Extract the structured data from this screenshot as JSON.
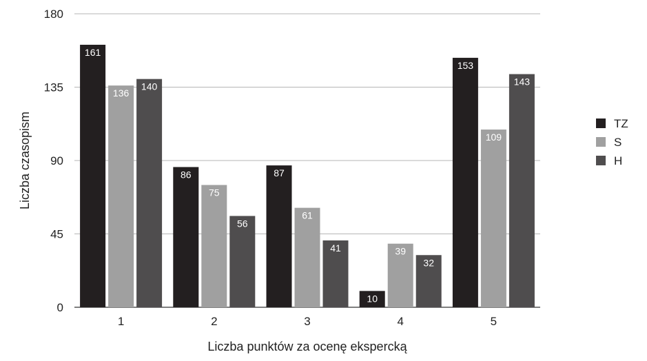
{
  "chart_data": {
    "type": "bar",
    "categories": [
      "1",
      "2",
      "3",
      "4",
      "5"
    ],
    "series": [
      {
        "name": "TZ",
        "values": [
          161,
          86,
          87,
          10,
          153
        ],
        "color": "#231f20"
      },
      {
        "name": "S",
        "values": [
          136,
          75,
          61,
          39,
          109
        ],
        "color": "#a0a0a0"
      },
      {
        "name": "H",
        "values": [
          140,
          56,
          41,
          32,
          143
        ],
        "color": "#4f4d4e"
      }
    ],
    "xlabel": "Liczba punktów za ocenę ekspercką",
    "ylabel": "Liczba czasopism",
    "ylim": [
      0,
      180
    ],
    "yticks": [
      0,
      45,
      90,
      135,
      180
    ],
    "grid": true,
    "legend_position": "right",
    "data_labels": true
  }
}
